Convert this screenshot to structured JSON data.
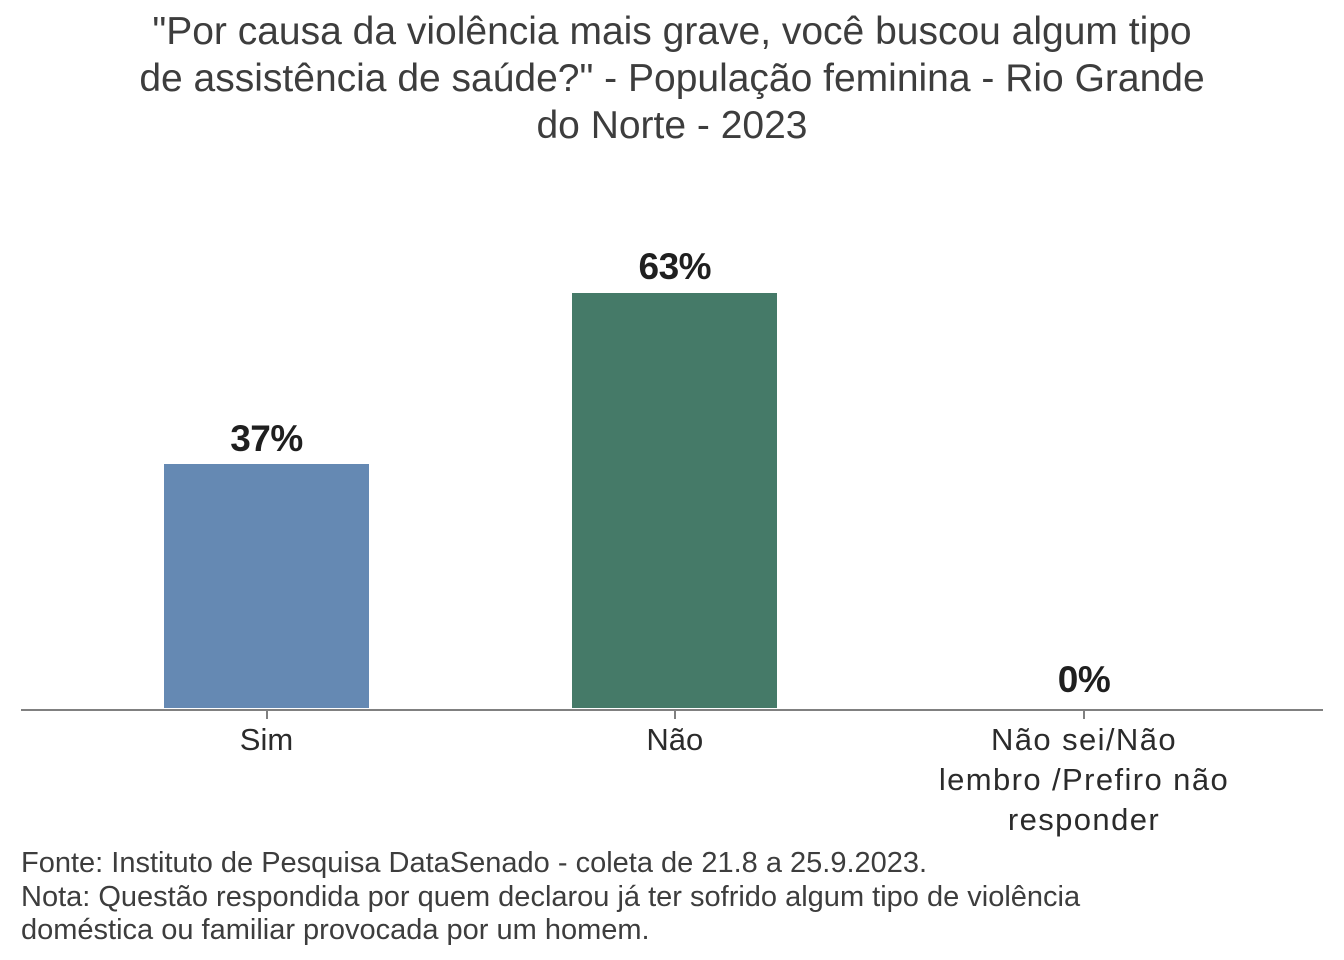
{
  "title": {
    "lines": [
      "\"Por causa da violência mais grave, você buscou algum tipo",
      "de assistência de saúde?\" - População feminina - Rio Grande",
      "do Norte - 2023"
    ],
    "full_text": "\"Por causa da violência mais grave, você buscou algum tipo de assistência de saúde?\" - População feminina - Rio Grande do Norte - 2023"
  },
  "chart_data": {
    "type": "bar",
    "categories": [
      "Sim",
      "Não",
      "Não sei/Não lembro /Prefiro não responder"
    ],
    "categories_display": [
      "Sim",
      "Não",
      "Não sei/Não\nlembro /Prefiro não\nresponder"
    ],
    "values": [
      37,
      63,
      0
    ],
    "value_labels": [
      "37%",
      "63%",
      "0%"
    ],
    "bar_colors": [
      "#6589b3",
      "#457a68",
      "#6589b3"
    ],
    "title": "\"Por causa da violência mais grave, você buscou algum tipo de assistência de saúde?\" - População feminina - Rio Grande do Norte - 2023",
    "xlabel": "",
    "ylabel": "",
    "ylim": [
      0,
      63
    ],
    "grid": false,
    "legend": false,
    "axis_color": "#808080"
  },
  "footnote": {
    "lines": [
      "Fonte: Instituto de Pesquisa DataSenado - coleta de 21.8 a 25.9.2023.",
      "Nota: Questão respondida por quem declarou já ter sofrido algum tipo de violência",
      "doméstica ou familiar provocada por um homem."
    ]
  }
}
